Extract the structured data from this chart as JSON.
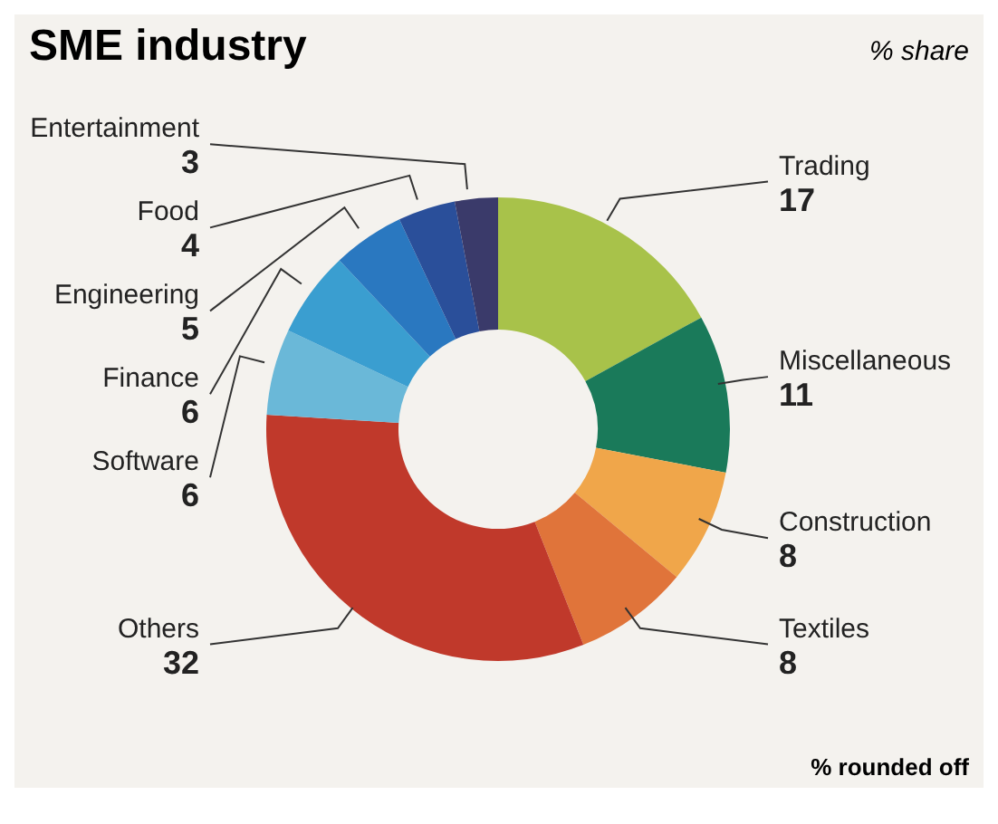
{
  "chart_data": {
    "type": "donut",
    "title": "SME industry",
    "subtitle": "% share",
    "categories": [
      "Trading",
      "Miscellaneous",
      "Construction",
      "Textiles",
      "Others",
      "Software",
      "Finance",
      "Engineering",
      "Food",
      "Entertainment"
    ],
    "values": [
      17,
      11,
      8,
      8,
      32,
      6,
      6,
      5,
      4,
      3
    ],
    "colors": [
      "#a8c24a",
      "#1a7a5a",
      "#f0a64a",
      "#e0743a",
      "#c0392b",
      "#6ab8d8",
      "#3a9ed0",
      "#2a78c0",
      "#2a4f9a",
      "#3a3a6a"
    ],
    "data_labels": true,
    "annotations": [
      "% rounded off"
    ]
  }
}
